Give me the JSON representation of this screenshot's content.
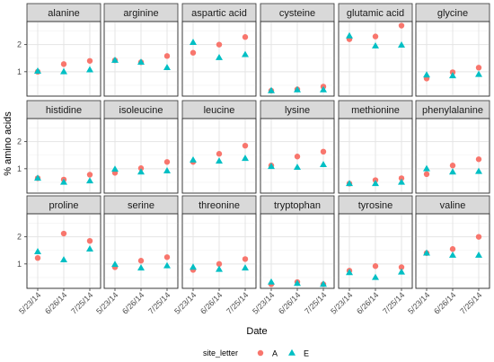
{
  "chart_data": {
    "type": "scatter",
    "xlabel": "Date",
    "ylabel": "% amino acids",
    "x_categories": [
      "5/23/14",
      "6/26/14",
      "7/25/14"
    ],
    "ylim": [
      0.1,
      2.85
    ],
    "yticks": [
      1,
      2
    ],
    "grid": true,
    "legend": {
      "title": "site_letter",
      "placement": "bottom",
      "entries": [
        {
          "label": "A",
          "shape": "circle"
        },
        {
          "label": "E",
          "shape": "triangle"
        }
      ]
    },
    "colors": {
      "A": "#F8766D",
      "E": "#00BFC4"
    },
    "panels": [
      {
        "name": "alanine",
        "A": [
          1.0,
          1.28,
          1.4
        ],
        "E": [
          1.02,
          1.0,
          1.07
        ]
      },
      {
        "name": "arginine",
        "A": [
          1.42,
          1.35,
          1.58
        ],
        "E": [
          1.42,
          1.35,
          1.15
        ]
      },
      {
        "name": "aspartic acid",
        "A": [
          1.7,
          2.0,
          2.28
        ],
        "E": [
          2.08,
          1.52,
          1.63
        ]
      },
      {
        "name": "cysteine",
        "A": [
          0.3,
          0.35,
          0.45
        ],
        "E": [
          0.3,
          0.33,
          0.33
        ]
      },
      {
        "name": "glutamic acid",
        "A": [
          2.2,
          2.3,
          2.7
        ],
        "E": [
          2.32,
          1.95,
          1.98
        ]
      },
      {
        "name": "glycine",
        "A": [
          0.75,
          0.98,
          1.15
        ],
        "E": [
          0.88,
          0.85,
          0.9
        ]
      },
      {
        "name": "histidine",
        "A": [
          0.65,
          0.6,
          0.78
        ],
        "E": [
          0.65,
          0.5,
          0.55
        ]
      },
      {
        "name": "isoleucine",
        "A": [
          0.85,
          1.02,
          1.25
        ],
        "E": [
          0.98,
          0.88,
          0.92
        ]
      },
      {
        "name": "leucine",
        "A": [
          1.25,
          1.55,
          1.85
        ],
        "E": [
          1.32,
          1.28,
          1.38
        ]
      },
      {
        "name": "lysine",
        "A": [
          1.12,
          1.45,
          1.63
        ],
        "E": [
          1.08,
          1.05,
          1.15
        ]
      },
      {
        "name": "methionine",
        "A": [
          0.45,
          0.58,
          0.65
        ],
        "E": [
          0.45,
          0.45,
          0.5
        ]
      },
      {
        "name": "phenylalanine",
        "A": [
          0.8,
          1.12,
          1.35
        ],
        "E": [
          1.0,
          0.88,
          0.9
        ]
      },
      {
        "name": "proline",
        "A": [
          1.22,
          2.12,
          1.85
        ],
        "E": [
          1.45,
          1.15,
          1.55
        ]
      },
      {
        "name": "serine",
        "A": [
          0.88,
          1.12,
          1.25
        ],
        "E": [
          0.98,
          0.85,
          0.93
        ]
      },
      {
        "name": "threonine",
        "A": [
          0.78,
          1.0,
          1.18
        ],
        "E": [
          0.88,
          0.8,
          0.85
        ]
      },
      {
        "name": "tryptophan",
        "A": [
          0.25,
          0.33,
          0.25
        ],
        "E": [
          0.33,
          0.28,
          0.25
        ]
      },
      {
        "name": "tyrosine",
        "A": [
          0.75,
          0.92,
          0.88
        ],
        "E": [
          0.68,
          0.5,
          0.7
        ]
      },
      {
        "name": "valine",
        "A": [
          1.4,
          1.55,
          2.0
        ],
        "E": [
          1.4,
          1.32,
          1.32
        ]
      }
    ]
  }
}
